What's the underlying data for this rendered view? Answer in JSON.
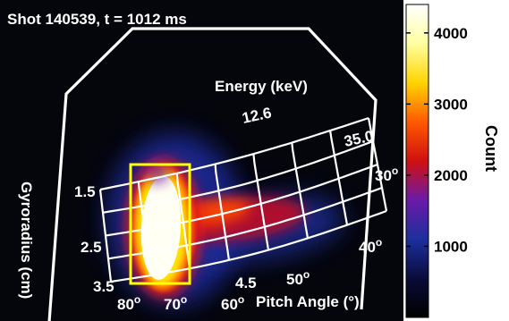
{
  "title": "Shot 140539, t = 1012 ms",
  "chart_data": {
    "type": "heatmap",
    "title": "Shot 140539, t = 1012 ms",
    "colorbar": {
      "label": "Count",
      "range": [
        0,
        4400
      ],
      "ticks": [
        {
          "value": 4000,
          "label": "4000"
        },
        {
          "value": 3000,
          "label": "3000"
        },
        {
          "value": 2000,
          "label": "2000"
        },
        {
          "value": 1000,
          "label": "1000"
        }
      ],
      "colormap": [
        "#000000",
        "#0b0b3a",
        "#1c2f9e",
        "#6a1aa8",
        "#d01010",
        "#ff5a00",
        "#ffd400",
        "#ffffa0",
        "#ffffff"
      ]
    },
    "grid_axes": {
      "energy": {
        "label": "Energy (keV)",
        "ticks": [
          {
            "value": 12.6,
            "label": "12.6"
          },
          {
            "value": 35.0,
            "label": "35.0"
          },
          {
            "value": 4.5,
            "label": "4.5"
          }
        ]
      },
      "gyroradius": {
        "label": "Gyroradius (cm)",
        "ticks": [
          {
            "value": 1.5,
            "label": "1.5"
          },
          {
            "value": 2.5,
            "label": "2.5"
          },
          {
            "value": 3.5,
            "label": "3.5"
          }
        ]
      },
      "pitch_angle": {
        "label": "Pitch Angle (°)",
        "ticks": [
          {
            "value": 80,
            "label": "80",
            "sup": "o"
          },
          {
            "value": 70,
            "label": "70",
            "sup": "o"
          },
          {
            "value": 60,
            "label": "60",
            "sup": "o"
          },
          {
            "value": 50,
            "label": "50",
            "sup": "o"
          },
          {
            "value": 40,
            "label": "40",
            "sup": "o"
          },
          {
            "value": 30,
            "label": "30",
            "sup": "o"
          }
        ]
      }
    },
    "features": [
      {
        "name": "peak",
        "count": 4400,
        "pitch_angle": 75,
        "gyroradius": 2.5
      },
      {
        "name": "tail",
        "count": 2200,
        "pitch_angle": 60,
        "gyroradius": 2.3
      }
    ],
    "region_box_color": "#ffff00"
  }
}
